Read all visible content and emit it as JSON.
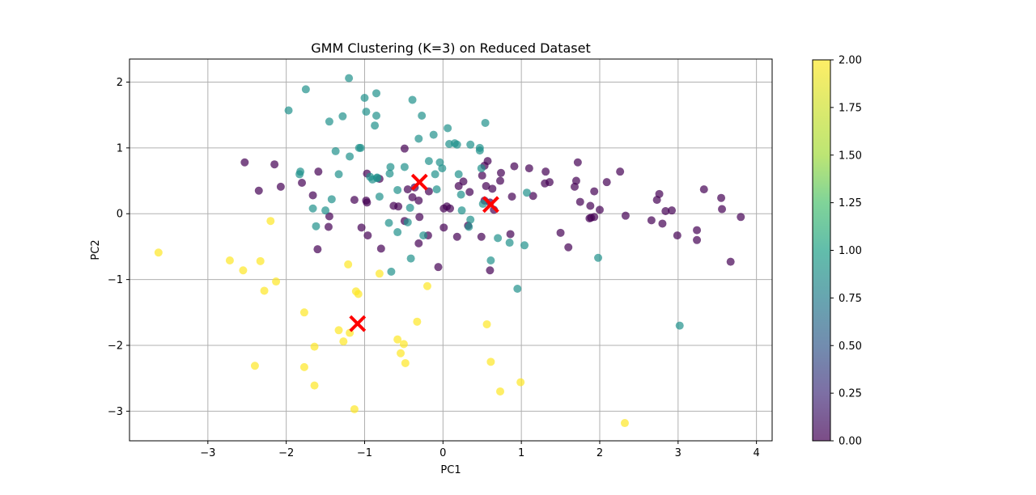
{
  "chart_data": {
    "type": "scatter",
    "title": "GMM Clustering (K=3) on Reduced Dataset",
    "xlabel": "PC1",
    "ylabel": "PC2",
    "xlim": [
      -4.0,
      4.2
    ],
    "ylim": [
      -3.45,
      2.35
    ],
    "xticks": [
      -3,
      -2,
      -1,
      0,
      1,
      2,
      3,
      4
    ],
    "yticks": [
      -3,
      -2,
      -1,
      0,
      1,
      2
    ],
    "grid": true,
    "colorbar": {
      "min": 0.0,
      "max": 2.0,
      "ticks": [
        "0.00",
        "0.25",
        "0.50",
        "0.75",
        "1.00",
        "1.25",
        "1.50",
        "1.75",
        "2.00"
      ],
      "colormap": "viridis",
      "alpha": 0.7
    },
    "colors": {
      "cluster0": "#440154",
      "cluster1": "#21918c",
      "cluster2": "#fde725",
      "centroid": "#ff0000"
    },
    "series": [
      {
        "cluster": 0,
        "points": [
          [
            -2.53,
            0.78
          ],
          [
            -2.35,
            0.35
          ],
          [
            -2.15,
            0.75
          ],
          [
            -2.07,
            0.41
          ],
          [
            -1.8,
            0.47
          ],
          [
            -1.66,
            0.28
          ],
          [
            -1.59,
            0.64
          ],
          [
            -1.6,
            -0.54
          ],
          [
            -1.45,
            -0.04
          ],
          [
            -1.46,
            -0.2
          ],
          [
            -1.13,
            0.21
          ],
          [
            -1.04,
            -0.21
          ],
          [
            -0.97,
            0.61
          ],
          [
            -0.98,
            0.2
          ],
          [
            -0.97,
            0.17
          ],
          [
            -0.96,
            -0.33
          ],
          [
            -0.79,
            -0.53
          ],
          [
            -0.81,
            0.53
          ],
          [
            -0.63,
            0.12
          ],
          [
            -0.57,
            0.11
          ],
          [
            -0.49,
            0.99
          ],
          [
            -0.49,
            -0.11
          ],
          [
            -0.45,
            0.37
          ],
          [
            -0.39,
            0.25
          ],
          [
            -0.36,
            0.4
          ],
          [
            -0.31,
            0.2
          ],
          [
            -0.31,
            -0.45
          ],
          [
            -0.3,
            -0.05
          ],
          [
            -0.19,
            -0.33
          ],
          [
            -0.18,
            0.34
          ],
          [
            -0.06,
            -0.81
          ],
          [
            0.01,
            -0.21
          ],
          [
            0.01,
            0.08
          ],
          [
            0.05,
            0.11
          ],
          [
            0.09,
            0.08
          ],
          [
            0.18,
            -0.35
          ],
          [
            0.2,
            0.42
          ],
          [
            0.26,
            0.49
          ],
          [
            0.32,
            -0.18
          ],
          [
            0.34,
            0.33
          ],
          [
            0.49,
            -0.35
          ],
          [
            0.5,
            0.58
          ],
          [
            0.53,
            0.2
          ],
          [
            0.53,
            0.73
          ],
          [
            0.55,
            0.42
          ],
          [
            0.57,
            0.8
          ],
          [
            0.6,
            -0.86
          ],
          [
            0.6,
            0.17
          ],
          [
            0.63,
            0.38
          ],
          [
            0.65,
            0.06
          ],
          [
            0.73,
            0.5
          ],
          [
            0.74,
            0.62
          ],
          [
            0.86,
            -0.31
          ],
          [
            0.88,
            0.26
          ],
          [
            0.91,
            0.72
          ],
          [
            1.1,
            0.69
          ],
          [
            1.15,
            0.27
          ],
          [
            1.3,
            0.46
          ],
          [
            1.31,
            0.64
          ],
          [
            1.36,
            0.48
          ],
          [
            1.5,
            -0.29
          ],
          [
            1.6,
            -0.51
          ],
          [
            1.68,
            0.41
          ],
          [
            1.7,
            0.5
          ],
          [
            1.72,
            0.78
          ],
          [
            1.75,
            0.18
          ],
          [
            1.87,
            -0.07
          ],
          [
            1.88,
            0.12
          ],
          [
            1.89,
            -0.06
          ],
          [
            1.93,
            -0.05
          ],
          [
            1.93,
            0.34
          ],
          [
            2.0,
            0.06
          ],
          [
            2.09,
            0.48
          ],
          [
            2.26,
            0.64
          ],
          [
            2.33,
            -0.03
          ],
          [
            2.66,
            -0.1
          ],
          [
            2.73,
            0.21
          ],
          [
            2.76,
            0.3
          ],
          [
            2.8,
            -0.15
          ],
          [
            2.84,
            0.04
          ],
          [
            2.92,
            0.05
          ],
          [
            2.99,
            -0.33
          ],
          [
            3.24,
            -0.25
          ],
          [
            3.24,
            -0.4
          ],
          [
            3.33,
            0.37
          ],
          [
            3.55,
            0.24
          ],
          [
            3.56,
            0.07
          ],
          [
            3.67,
            -0.73
          ],
          [
            3.8,
            -0.05
          ]
        ]
      },
      {
        "cluster": 1,
        "points": [
          [
            -1.75,
            1.89
          ],
          [
            -1.97,
            1.57
          ],
          [
            -1.82,
            0.64
          ],
          [
            -1.83,
            0.6
          ],
          [
            -1.66,
            0.08
          ],
          [
            -1.62,
            -0.19
          ],
          [
            -1.5,
            0.05
          ],
          [
            -1.45,
            1.4
          ],
          [
            -1.42,
            0.22
          ],
          [
            -1.37,
            0.95
          ],
          [
            -1.33,
            0.6
          ],
          [
            -1.28,
            1.48
          ],
          [
            -1.2,
            2.06
          ],
          [
            -1.19,
            0.87
          ],
          [
            -1.07,
            1.0
          ],
          [
            -1.05,
            1.0
          ],
          [
            -1.0,
            1.76
          ],
          [
            -0.98,
            1.55
          ],
          [
            -0.93,
            0.56
          ],
          [
            -0.9,
            0.52
          ],
          [
            -0.87,
            1.34
          ],
          [
            -0.85,
            1.49
          ],
          [
            -0.85,
            1.83
          ],
          [
            -0.84,
            0.54
          ],
          [
            -0.84,
            0.55
          ],
          [
            -0.81,
            0.26
          ],
          [
            -0.68,
            0.61
          ],
          [
            -0.67,
            0.71
          ],
          [
            -0.69,
            -0.14
          ],
          [
            -0.66,
            -0.88
          ],
          [
            -0.58,
            0.36
          ],
          [
            -0.58,
            -0.28
          ],
          [
            -0.49,
            0.71
          ],
          [
            -0.45,
            -0.13
          ],
          [
            -0.42,
            0.09
          ],
          [
            -0.41,
            -0.68
          ],
          [
            -0.39,
            1.73
          ],
          [
            -0.31,
            1.14
          ],
          [
            -0.27,
            1.49
          ],
          [
            -0.25,
            -0.33
          ],
          [
            -0.18,
            0.8
          ],
          [
            -0.12,
            1.2
          ],
          [
            -0.1,
            0.6
          ],
          [
            -0.08,
            0.37
          ],
          [
            -0.04,
            0.78
          ],
          [
            -0.01,
            0.69
          ],
          [
            0.06,
            1.3
          ],
          [
            0.08,
            1.06
          ],
          [
            0.15,
            1.07
          ],
          [
            0.18,
            1.05
          ],
          [
            0.2,
            0.6
          ],
          [
            0.23,
            0.29
          ],
          [
            0.24,
            0.05
          ],
          [
            0.33,
            -0.2
          ],
          [
            0.35,
            1.05
          ],
          [
            0.35,
            -0.09
          ],
          [
            0.47,
            1.0
          ],
          [
            0.47,
            0.96
          ],
          [
            0.49,
            0.69
          ],
          [
            0.51,
            0.15
          ],
          [
            0.54,
            1.38
          ],
          [
            0.61,
            -0.71
          ],
          [
            0.7,
            -0.37
          ],
          [
            0.85,
            -0.44
          ],
          [
            0.95,
            -1.14
          ],
          [
            1.04,
            -0.48
          ],
          [
            1.07,
            0.32
          ],
          [
            1.98,
            -0.67
          ],
          [
            3.02,
            -1.7
          ]
        ]
      },
      {
        "cluster": 2,
        "points": [
          [
            -3.63,
            -0.59
          ],
          [
            -2.72,
            -0.71
          ],
          [
            -2.55,
            -0.86
          ],
          [
            -2.4,
            -2.31
          ],
          [
            -2.33,
            -0.72
          ],
          [
            -2.28,
            -1.17
          ],
          [
            -2.2,
            -0.11
          ],
          [
            -2.13,
            -1.03
          ],
          [
            -1.77,
            -1.5
          ],
          [
            -1.77,
            -2.33
          ],
          [
            -1.64,
            -2.02
          ],
          [
            -1.64,
            -2.61
          ],
          [
            -1.33,
            -1.77
          ],
          [
            -1.27,
            -1.94
          ],
          [
            -1.21,
            -0.77
          ],
          [
            -1.19,
            -1.81
          ],
          [
            -1.13,
            -2.97
          ],
          [
            -1.11,
            -1.18
          ],
          [
            -1.08,
            -1.22
          ],
          [
            -0.81,
            -0.91
          ],
          [
            -0.58,
            -1.91
          ],
          [
            -0.54,
            -2.12
          ],
          [
            -0.5,
            -1.98
          ],
          [
            -0.48,
            -2.27
          ],
          [
            -0.33,
            -1.64
          ],
          [
            -0.2,
            -1.1
          ],
          [
            0.56,
            -1.68
          ],
          [
            0.61,
            -2.25
          ],
          [
            0.73,
            -2.7
          ],
          [
            0.99,
            -2.56
          ],
          [
            2.32,
            -3.18
          ]
        ]
      }
    ],
    "centroids": [
      [
        -0.3,
        0.48
      ],
      [
        0.61,
        0.14
      ],
      [
        -1.09,
        -1.67
      ]
    ]
  }
}
